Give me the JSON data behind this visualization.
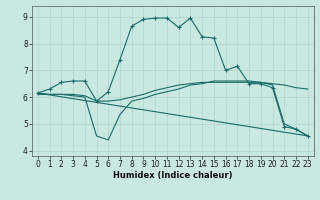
{
  "title": "",
  "xlabel": "Humidex (Indice chaleur)",
  "xlim": [
    -0.5,
    23.5
  ],
  "ylim": [
    3.8,
    9.4
  ],
  "xticks": [
    0,
    1,
    2,
    3,
    4,
    5,
    6,
    7,
    8,
    9,
    10,
    11,
    12,
    13,
    14,
    15,
    16,
    17,
    18,
    19,
    20,
    21,
    22,
    23
  ],
  "yticks": [
    4,
    5,
    6,
    7,
    8,
    9
  ],
  "bg_color": "#c8e8e0",
  "grid_color": "#b0d4cc",
  "line_color": "#1a6b6b",
  "lines": [
    {
      "x": [
        0,
        1,
        2,
        3,
        4,
        5,
        6,
        7,
        8,
        9,
        10,
        11,
        12,
        13,
        14,
        15,
        16,
        17,
        18,
        19,
        20,
        21,
        22,
        23
      ],
      "y": [
        6.15,
        6.3,
        6.55,
        6.6,
        6.6,
        5.85,
        6.2,
        7.4,
        8.65,
        8.9,
        8.95,
        8.95,
        8.6,
        8.95,
        8.25,
        8.2,
        7.0,
        7.15,
        6.5,
        6.5,
        6.35,
        4.9,
        4.8,
        4.55
      ],
      "marker": "+"
    },
    {
      "x": [
        0,
        23
      ],
      "y": [
        6.15,
        4.55
      ],
      "marker": null
    },
    {
      "x": [
        0,
        1,
        2,
        3,
        4,
        5,
        6,
        7,
        8,
        9,
        10,
        11,
        12,
        13,
        14,
        15,
        16,
        17,
        18,
        19,
        20,
        21,
        22,
        23
      ],
      "y": [
        6.1,
        6.1,
        6.1,
        6.1,
        6.05,
        5.85,
        5.85,
        5.9,
        6.0,
        6.1,
        6.25,
        6.35,
        6.45,
        6.5,
        6.55,
        6.55,
        6.55,
        6.55,
        6.55,
        6.55,
        6.5,
        6.45,
        6.35,
        6.3
      ],
      "marker": null
    },
    {
      "x": [
        0,
        1,
        2,
        3,
        4,
        5,
        6,
        7,
        8,
        9,
        10,
        11,
        12,
        13,
        14,
        15,
        16,
        17,
        18,
        19,
        20,
        21,
        22,
        23
      ],
      "y": [
        6.15,
        6.1,
        6.1,
        6.05,
        6.0,
        4.55,
        4.4,
        5.35,
        5.85,
        5.95,
        6.1,
        6.2,
        6.3,
        6.45,
        6.5,
        6.6,
        6.6,
        6.6,
        6.6,
        6.55,
        6.45,
        5.0,
        4.8,
        4.55
      ],
      "marker": null
    }
  ]
}
